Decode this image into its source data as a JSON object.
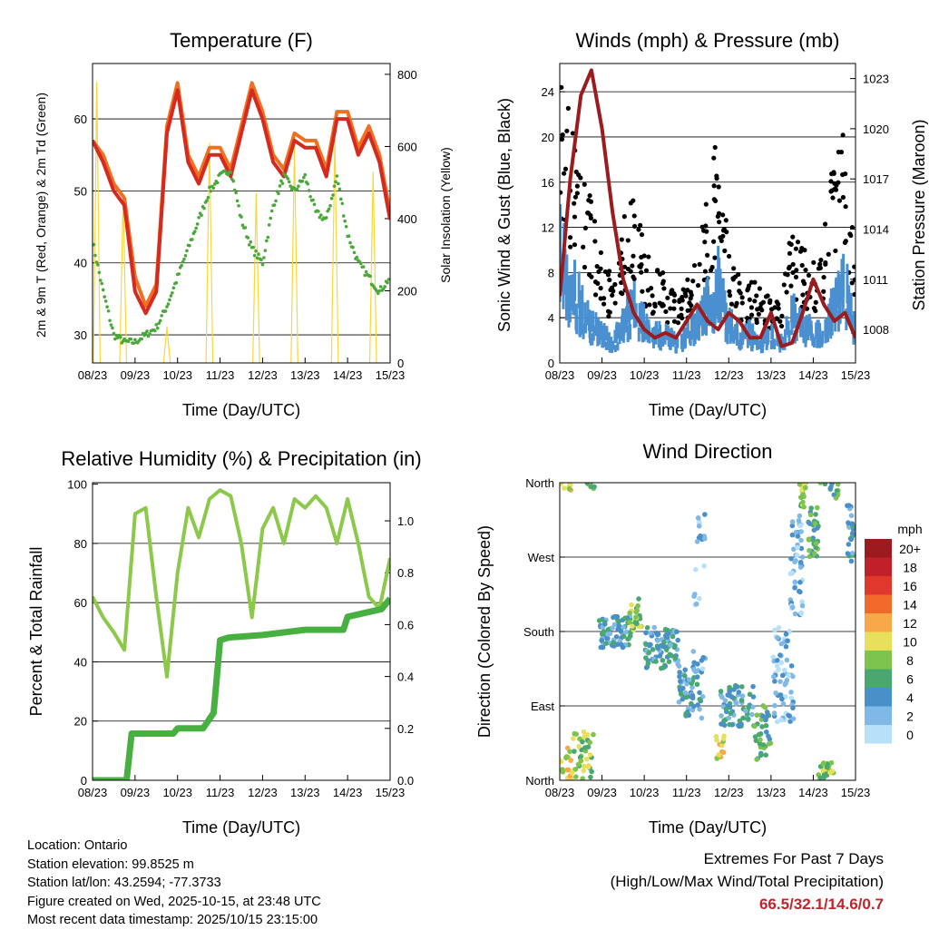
{
  "x_tick_labels": [
    "08/23",
    "09/23",
    "10/23",
    "11/23",
    "12/23",
    "13/23",
    "14/23",
    "15/23"
  ],
  "xlabel": "Time (Day/UTC)",
  "chart_data": [
    {
      "type": "line",
      "title": "Temperature (F)",
      "ylabel": "2m & 9m T (Red, Orange) & 2m Td (Green)",
      "y2label": "Solar Insolation (Yellow)",
      "ylim": [
        26.1,
        67.7
      ],
      "y2lim": [
        0,
        830
      ],
      "yticks": [
        30,
        40,
        50,
        60
      ],
      "y2ticks": [
        0,
        200,
        400,
        600,
        800
      ],
      "xlim": [
        0,
        7
      ],
      "x": [
        0,
        0.25,
        0.5,
        0.75,
        1,
        1.25,
        1.5,
        1.75,
        2,
        2.25,
        2.5,
        2.75,
        3,
        3.25,
        3.5,
        3.75,
        4,
        4.25,
        4.5,
        4.75,
        5,
        5.25,
        5.5,
        5.75,
        6,
        6.25,
        6.5,
        6.75,
        7
      ],
      "series": [
        {
          "name": "9m T",
          "color": "#f07020",
          "values": [
            57,
            55,
            51,
            49,
            38,
            34,
            37,
            59,
            65,
            55,
            52,
            56,
            56,
            53,
            59,
            65,
            61,
            55,
            53,
            58,
            57,
            57,
            53,
            61,
            61,
            56,
            59,
            55,
            47
          ]
        },
        {
          "name": "2m T",
          "color": "#d42a20",
          "values": [
            57,
            54,
            50,
            48,
            36,
            33,
            36,
            58,
            64,
            54,
            51,
            55,
            55,
            52,
            58,
            64,
            60,
            54,
            52,
            57,
            56,
            56,
            52,
            60,
            60,
            55,
            58,
            54,
            46
          ]
        },
        {
          "name": "2m Td",
          "color": "#4aa83a",
          "values": [
            43,
            36,
            30,
            29,
            29,
            30,
            31,
            34,
            38,
            42,
            46,
            50,
            52,
            53,
            46,
            42,
            40,
            48,
            52,
            50,
            52,
            47,
            46,
            52,
            44,
            40,
            38,
            36,
            38
          ]
        }
      ],
      "solar_peaks": {
        "color": "#f8d838",
        "t": [
          0.1,
          0.72,
          1.75,
          2.75,
          3.85,
          4.75,
          5.7,
          6.6
        ],
        "values": [
          780,
          460,
          100,
          610,
          470,
          600,
          620,
          530
        ]
      }
    },
    {
      "type": "scatter",
      "title": "Winds (mph) & Pressure (mb)",
      "ylabel": "Sonic Wind & Gust (Blue, Black)",
      "y2label": "Station Pressure (Maroon)",
      "ylim": [
        0,
        26.5
      ],
      "y2lim": [
        1006.0,
        1023.9
      ],
      "yticks": [
        0,
        4,
        8,
        12,
        16,
        20,
        24
      ],
      "y2ticks": [
        1008,
        1011,
        1014,
        1017,
        1020,
        1023
      ],
      "xlim": [
        0,
        7
      ],
      "x": [
        0,
        0.25,
        0.5,
        0.75,
        1,
        1.25,
        1.5,
        1.75,
        2,
        2.25,
        2.5,
        2.75,
        3,
        3.25,
        3.5,
        3.75,
        4,
        4.25,
        4.5,
        4.75,
        5,
        5.25,
        5.5,
        5.75,
        6,
        6.25,
        6.5,
        6.75,
        7
      ],
      "series": [
        {
          "name": "Gust",
          "color": "#000000",
          "values": [
            20,
            17,
            14,
            11,
            8,
            6,
            10,
            12,
            8,
            7,
            6,
            5,
            6,
            8,
            12,
            16,
            8,
            6,
            6,
            5,
            5,
            4,
            10,
            8,
            7,
            9,
            16,
            17,
            6
          ]
        },
        {
          "name": "Sonic Wind",
          "color": "#4a90d0",
          "values": [
            12,
            8,
            6,
            4,
            3,
            2,
            4,
            6,
            4,
            3,
            3,
            2,
            3,
            4,
            6,
            8,
            4,
            3,
            3,
            2,
            3,
            2,
            5,
            4,
            3,
            3,
            6,
            8,
            3
          ]
        },
        {
          "name": "Pressure",
          "color": "#9b1b1e",
          "axis": "right",
          "values": [
            1010,
            1017,
            1022,
            1023.5,
            1020,
            1015,
            1011,
            1009,
            1008,
            1007.5,
            1007.8,
            1007.5,
            1008.5,
            1009.5,
            1008.5,
            1008,
            1009,
            1008.5,
            1007.5,
            1007.5,
            1009,
            1007,
            1007.2,
            1009,
            1011,
            1009.5,
            1008.5,
            1009,
            1007.5
          ]
        }
      ]
    },
    {
      "type": "line",
      "title": "Relative Humidity (%) & Precipitation (in)",
      "ylabel": "Percent & Total Rainfall",
      "ylim": [
        0,
        100.5
      ],
      "y2lim": [
        0,
        1.147
      ],
      "yticks": [
        0,
        20,
        40,
        60,
        80,
        100
      ],
      "y2ticks": [
        "0.0",
        "0.2",
        "0.4",
        "0.6",
        "0.8",
        "1.0"
      ],
      "xlim": [
        0,
        7
      ],
      "x": [
        0,
        0.25,
        0.5,
        0.75,
        1,
        1.25,
        1.5,
        1.75,
        2,
        2.25,
        2.5,
        2.75,
        3,
        3.25,
        3.5,
        3.75,
        4,
        4.25,
        4.5,
        4.75,
        5,
        5.25,
        5.5,
        5.75,
        6,
        6.25,
        6.5,
        6.75,
        7
      ],
      "series": [
        {
          "name": "RH",
          "color": "#8cc84a",
          "values": [
            62,
            55,
            50,
            44,
            90,
            92,
            62,
            35,
            70,
            92,
            82,
            95,
            98,
            96,
            80,
            55,
            85,
            92,
            80,
            95,
            92,
            96,
            92,
            80,
            95,
            80,
            62,
            58,
            75
          ]
        }
      ],
      "precip_steps": {
        "name": "Total Precipitation",
        "color": "#48b040",
        "t": [
          0,
          0.8,
          0.92,
          1.9,
          2.0,
          2.6,
          2.85,
          3.0,
          3.2,
          4.0,
          5.0,
          5.9,
          6.0,
          6.8,
          7.0
        ],
        "values": [
          0,
          0,
          0.18,
          0.18,
          0.2,
          0.2,
          0.26,
          0.54,
          0.55,
          0.56,
          0.58,
          0.58,
          0.63,
          0.66,
          0.7
        ]
      }
    },
    {
      "type": "scatter",
      "title": "Wind Direction",
      "ylabel": "Direction (Colored By Speed)",
      "ylim": [
        0,
        360
      ],
      "yticks": [
        "North",
        "East",
        "South",
        "West",
        "North"
      ],
      "xlim": [
        0,
        7
      ],
      "clusters": [
        {
          "t": 0.1,
          "dt": 0.2,
          "dir": 15,
          "ddir": 25,
          "speed": 10,
          "n": 30
        },
        {
          "t": 0.55,
          "dt": 0.25,
          "dir": 30,
          "ddir": 30,
          "speed": 8,
          "n": 40
        },
        {
          "t": 0.75,
          "dt": 0.1,
          "dir": 355,
          "ddir": 5,
          "speed": 8,
          "n": 6
        },
        {
          "t": 1.3,
          "dt": 0.4,
          "dir": 180,
          "ddir": 20,
          "speed": 4,
          "n": 70
        },
        {
          "t": 1.8,
          "dt": 0.15,
          "dir": 200,
          "ddir": 20,
          "speed": 8,
          "n": 25
        },
        {
          "t": 2.4,
          "dt": 0.4,
          "dir": 160,
          "ddir": 25,
          "speed": 4,
          "n": 80
        },
        {
          "t": 3.1,
          "dt": 0.3,
          "dir": 110,
          "ddir": 35,
          "speed": 4,
          "n": 60
        },
        {
          "t": 3.3,
          "dt": 0.15,
          "dir": 230,
          "ddir": 100,
          "speed": 2,
          "n": 25
        },
        {
          "t": 3.8,
          "dt": 0.1,
          "dir": 40,
          "ddir": 15,
          "speed": 10,
          "n": 15
        },
        {
          "t": 4.2,
          "dt": 0.4,
          "dir": 90,
          "ddir": 25,
          "speed": 4,
          "n": 70
        },
        {
          "t": 4.8,
          "dt": 0.2,
          "dir": 60,
          "ddir": 35,
          "speed": 6,
          "n": 35
        },
        {
          "t": 5.3,
          "dt": 0.25,
          "dir": 130,
          "ddir": 60,
          "speed": 2,
          "n": 60
        },
        {
          "t": 5.6,
          "dt": 0.15,
          "dir": 260,
          "ddir": 60,
          "speed": 2,
          "n": 50
        },
        {
          "t": 5.75,
          "dt": 0.08,
          "dir": 345,
          "ddir": 15,
          "speed": 8,
          "n": 25
        },
        {
          "t": 6.0,
          "dt": 0.12,
          "dir": 300,
          "ddir": 30,
          "speed": 6,
          "n": 30
        },
        {
          "t": 6.3,
          "dt": 0.2,
          "dir": 10,
          "ddir": 12,
          "speed": 8,
          "n": 30
        },
        {
          "t": 6.5,
          "dt": 0.1,
          "dir": 350,
          "ddir": 10,
          "speed": 6,
          "n": 12
        },
        {
          "t": 6.9,
          "dt": 0.1,
          "dir": 300,
          "ddir": 35,
          "speed": 4,
          "n": 25
        }
      ],
      "legend": {
        "title": "mph",
        "labels": [
          "20+",
          "18",
          "16",
          "14",
          "12",
          "10",
          "8",
          "6",
          "4",
          "2",
          "0"
        ],
        "colors": [
          "#9b1b1e",
          "#c0202a",
          "#e0382c",
          "#f06a2c",
          "#f8a848",
          "#e8e05a",
          "#7dc44e",
          "#48a870",
          "#4a90c8",
          "#80b8e6",
          "#b8e0f8"
        ]
      }
    }
  ],
  "info": {
    "location": "Location: Ontario",
    "elevation": "Station elevation: 99.8525 m",
    "latlon": "Station lat/lon: 43.2594; -77.3733",
    "created": "Figure created on Wed, 2025-10-15, at 23:48 UTC",
    "recent": "Most recent data timestamp: 2025/10/15 23:15:00"
  },
  "extremes": {
    "title": "Extremes For Past 7 Days",
    "subtitle": "(High/Low/Max Wind/Total Precipitation)",
    "values": "66.5/32.1/14.6/0.7"
  }
}
